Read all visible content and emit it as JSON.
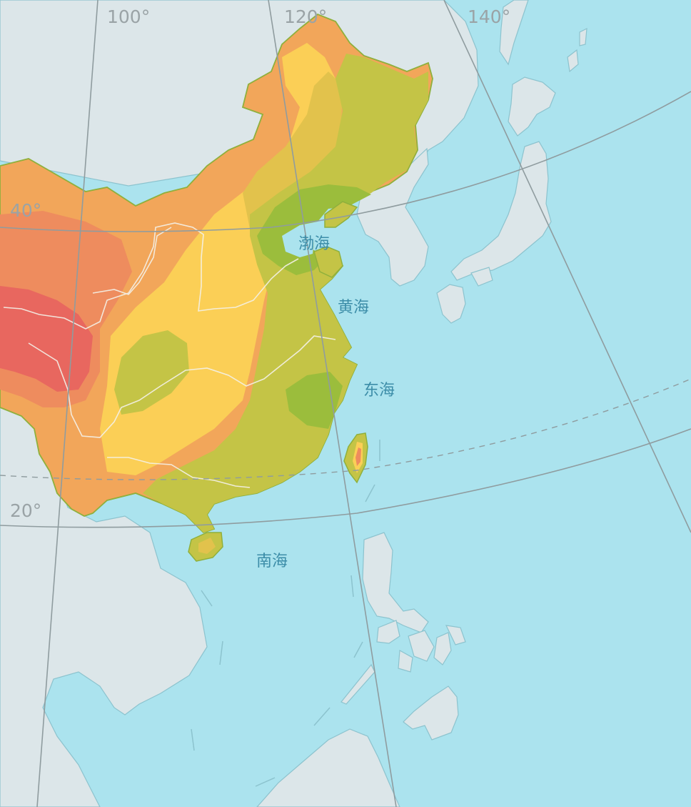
{
  "graticule_labels": {
    "lon_100": "100°",
    "lon_120": "120°",
    "lon_140": "140°",
    "lat_40": "40°",
    "lat_20": "20°"
  },
  "sea_labels": {
    "bohai": "渤海",
    "huanghai": "黄海",
    "donghai": "东海",
    "nanhai": "南海"
  },
  "colors": {
    "ocean": "#ABE3EE",
    "land_other": "#DCE6E9",
    "coast_line": "#8CC3CE",
    "graticule": "#8F9C9F",
    "river": "#F4F1E8",
    "zone_red": "#E8675F",
    "zone_coral": "#EE8C5E",
    "zone_orange": "#F2A65A",
    "zone_yellow": "#FBCF56",
    "zone_mustard": "#E2C24C",
    "zone_olive": "#C4C446",
    "zone_green": "#9BBD3C"
  }
}
